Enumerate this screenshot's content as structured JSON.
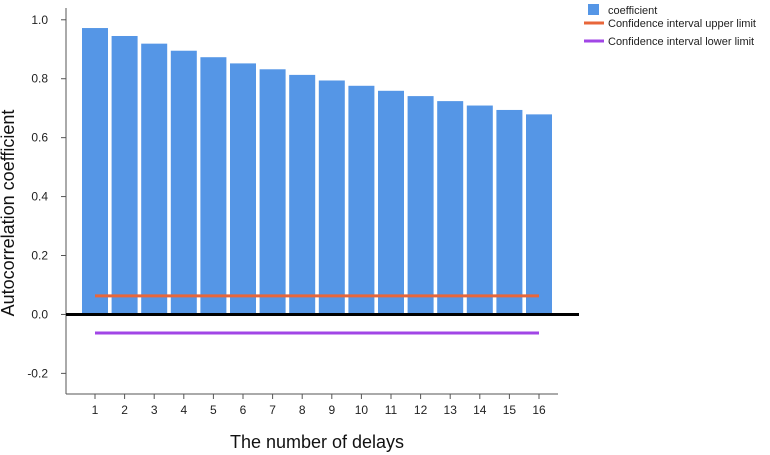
{
  "chart_data": {
    "type": "bar",
    "xlabel": "The number of delays",
    "ylabel": "Autocorrelation coefficient",
    "categories": [
      "1",
      "2",
      "3",
      "4",
      "5",
      "6",
      "7",
      "8",
      "9",
      "10",
      "11",
      "12",
      "13",
      "14",
      "15",
      "16"
    ],
    "series": [
      {
        "name": "coefficient",
        "type": "bar",
        "color": "#5596e6",
        "values": [
          0.972,
          0.945,
          0.919,
          0.895,
          0.873,
          0.852,
          0.832,
          0.813,
          0.794,
          0.776,
          0.759,
          0.741,
          0.724,
          0.709,
          0.694,
          0.679
        ]
      },
      {
        "name": "Confidence interval upper limit",
        "type": "line",
        "color": "#e8663a",
        "values": [
          0.063,
          0.063,
          0.063,
          0.063,
          0.063,
          0.063,
          0.063,
          0.063,
          0.063,
          0.063,
          0.063,
          0.063,
          0.063,
          0.063,
          0.063,
          0.063
        ]
      },
      {
        "name": "Confidence interval lower limit",
        "type": "line",
        "color": "#a146e6",
        "values": [
          -0.063,
          -0.063,
          -0.063,
          -0.063,
          -0.063,
          -0.063,
          -0.063,
          -0.063,
          -0.063,
          -0.063,
          -0.063,
          -0.063,
          -0.063,
          -0.063,
          -0.063,
          -0.063
        ]
      }
    ],
    "ylim": [
      -0.27,
      1.04
    ],
    "yticks": [
      -0.2,
      0.0,
      0.2,
      0.4,
      0.6,
      0.8,
      1.0
    ],
    "ytick_labels": [
      "-0.2",
      "0.0",
      "0.2",
      "0.4",
      "0.6",
      "0.8",
      "1.0"
    ],
    "reference_line": 0.0,
    "grid": false,
    "legend_position": "top-right"
  }
}
